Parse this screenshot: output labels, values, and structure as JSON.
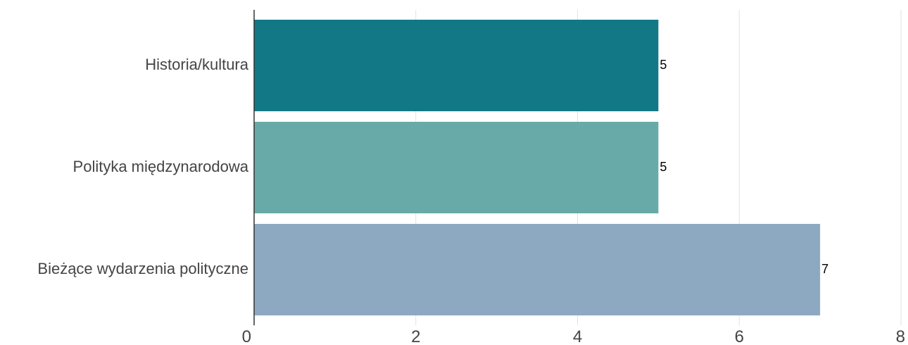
{
  "chart_data": {
    "type": "bar",
    "orientation": "horizontal",
    "categories": [
      "Historia/kultura",
      "Polityka międzynarodowa",
      "Bieżące wydarzenia polityczne"
    ],
    "values": [
      5,
      5,
      7
    ],
    "colors": [
      "#127885",
      "#68aaa8",
      "#8da9c2"
    ],
    "data_labels": [
      "5",
      "5",
      "7"
    ],
    "title": "",
    "xlabel": "",
    "ylabel": "",
    "xlim": [
      0,
      8
    ],
    "xticks": [
      0,
      2,
      4,
      6,
      8
    ],
    "xtick_labels": [
      "0",
      "2",
      "4",
      "6",
      "8"
    ],
    "grid": "vertical",
    "legend": "none"
  }
}
